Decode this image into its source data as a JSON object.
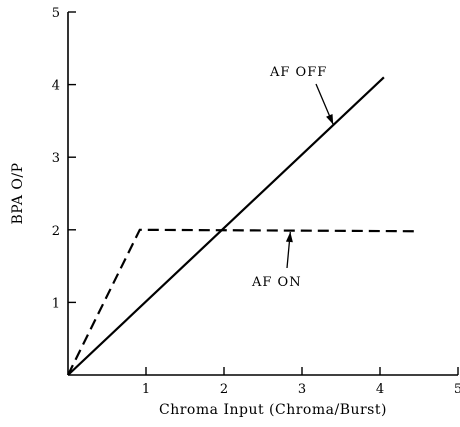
{
  "chart_data": {
    "type": "line",
    "title": "",
    "xlabel": "Chroma Input (Chroma/Burst)",
    "ylabel": "BPA O/P",
    "xlim": [
      0,
      5
    ],
    "ylim": [
      0,
      5
    ],
    "xticks": [
      "1",
      "2",
      "3",
      "4",
      "5"
    ],
    "yticks": [
      "1",
      "2",
      "3",
      "4",
      "5"
    ],
    "grid": false,
    "series": [
      {
        "name": "AF OFF",
        "style": "solid",
        "x": [
          0,
          4.05
        ],
        "y": [
          0,
          4.1
        ]
      },
      {
        "name": "AF ON",
        "style": "dashed",
        "x": [
          0,
          0.92,
          4.5
        ],
        "y": [
          0,
          2.0,
          1.98
        ]
      }
    ],
    "annotations": [
      {
        "text": "AF OFF",
        "points_to": [
          3.4,
          3.45
        ]
      },
      {
        "text": "AF ON",
        "points_to": [
          2.85,
          1.97
        ]
      }
    ]
  }
}
